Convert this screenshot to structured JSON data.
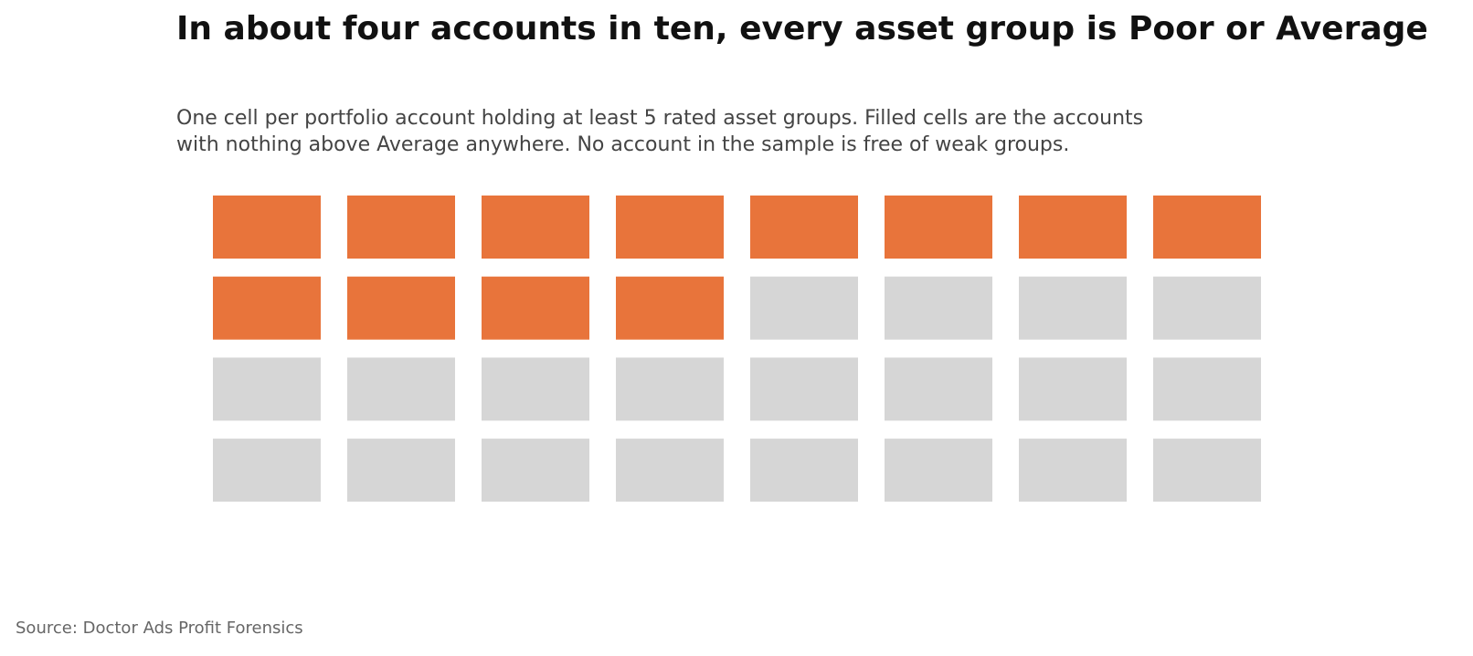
{
  "chart_data": {
    "type": "waffle",
    "title": "In about four accounts in ten, every asset group is Poor or Average",
    "subtitle_lines": [
      "One cell per portfolio account holding at least 5 rated asset groups. Filled cells are the accounts",
      "with nothing above Average anywhere. No account in the sample is free of weak groups."
    ],
    "rows": 4,
    "columns": 8,
    "total_cells": 32,
    "filled_cells": 12,
    "fill_order": "row-major, top-left first",
    "colors": {
      "filled": "#e8743b",
      "empty": "#d6d6d6",
      "background": "#ffffff"
    }
  },
  "source": "Source: Doctor Ads Profit Forensics"
}
